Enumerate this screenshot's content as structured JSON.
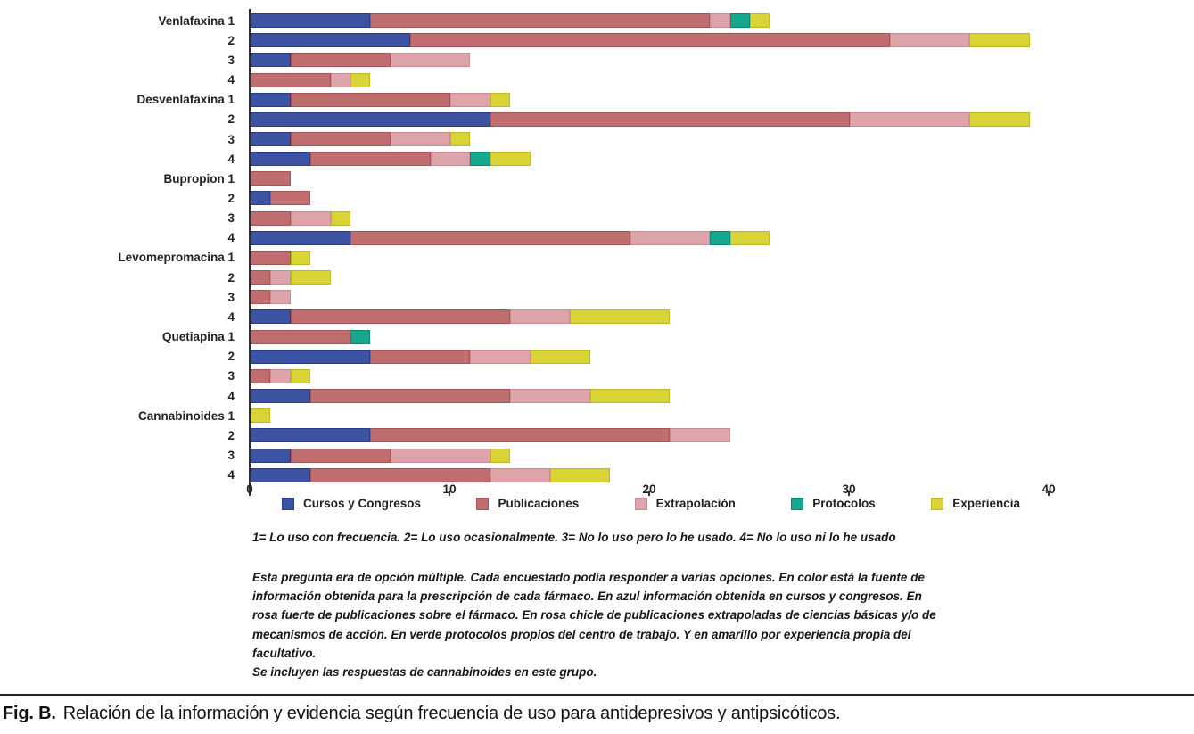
{
  "chart_data": {
    "type": "bar",
    "orientation": "horizontal",
    "stacked": true,
    "xlim": [
      0,
      40
    ],
    "x_ticks": [
      0,
      10,
      20,
      30,
      40
    ],
    "grid": false,
    "legend_position": "bottom",
    "series_names": [
      "Cursos y Congresos",
      "Publicaciones",
      "Extrapolación",
      "Protocolos",
      "Experiencia"
    ],
    "series_keys": [
      "cursos-y-congresos",
      "publicaciones",
      "extrapolacion",
      "protocolos",
      "experiencia"
    ],
    "series_colors": [
      "#3c53a4",
      "#c06d70",
      "#dda4aa",
      "#17a78d",
      "#d9d335"
    ],
    "series_border_colors": [
      "#293c85",
      "#a65459",
      "#c98d95",
      "#0e8a74",
      "#bdb827"
    ],
    "rows": [
      {
        "group": "Venlafaxina",
        "label": "Venlafaxina 1",
        "values": [
          6,
          17,
          1,
          1,
          1
        ]
      },
      {
        "group": "Venlafaxina",
        "label": "2",
        "values": [
          8,
          24,
          4,
          0,
          3
        ]
      },
      {
        "group": "Venlafaxina",
        "label": "3",
        "values": [
          2,
          5,
          4,
          0,
          0
        ]
      },
      {
        "group": "Venlafaxina",
        "label": "4",
        "values": [
          0,
          4,
          1,
          0,
          1
        ]
      },
      {
        "group": "Desvenlafaxina",
        "label": "Desvenlafaxina 1",
        "values": [
          2,
          8,
          2,
          0,
          1
        ]
      },
      {
        "group": "Desvenlafaxina",
        "label": "2",
        "values": [
          12,
          18,
          6,
          0,
          3
        ]
      },
      {
        "group": "Desvenlafaxina",
        "label": "3",
        "values": [
          2,
          5,
          3,
          0,
          1
        ]
      },
      {
        "group": "Desvenlafaxina",
        "label": "4",
        "values": [
          3,
          6,
          2,
          1,
          2
        ]
      },
      {
        "group": "Bupropion",
        "label": "Bupropion 1",
        "values": [
          0,
          2,
          0,
          0,
          0
        ]
      },
      {
        "group": "Bupropion",
        "label": "2",
        "values": [
          1,
          2,
          0,
          0,
          0
        ]
      },
      {
        "group": "Bupropion",
        "label": "3",
        "values": [
          0,
          2,
          2,
          0,
          1
        ]
      },
      {
        "group": "Bupropion",
        "label": "4",
        "values": [
          5,
          14,
          4,
          1,
          2
        ]
      },
      {
        "group": "Levomepromacina",
        "label": "Levomepromacina 1",
        "values": [
          0,
          2,
          0,
          0,
          1
        ]
      },
      {
        "group": "Levomepromacina",
        "label": "2",
        "values": [
          0,
          1,
          1,
          0,
          2
        ]
      },
      {
        "group": "Levomepromacina",
        "label": "3",
        "values": [
          0,
          1,
          1,
          0,
          0
        ]
      },
      {
        "group": "Levomepromacina",
        "label": "4",
        "values": [
          2,
          11,
          3,
          0,
          5
        ]
      },
      {
        "group": "Quetiapina",
        "label": "Quetiapina 1",
        "values": [
          0,
          5,
          0,
          1,
          0
        ]
      },
      {
        "group": "Quetiapina",
        "label": "2",
        "values": [
          6,
          5,
          3,
          0,
          3
        ]
      },
      {
        "group": "Quetiapina",
        "label": "3",
        "values": [
          0,
          1,
          1,
          0,
          1
        ]
      },
      {
        "group": "Quetiapina",
        "label": "4",
        "values": [
          3,
          10,
          4,
          0,
          4
        ]
      },
      {
        "group": "Cannabinoides",
        "label": "Cannabinoides 1",
        "values": [
          0,
          0,
          0,
          0,
          1
        ]
      },
      {
        "group": "Cannabinoides",
        "label": "2",
        "values": [
          6,
          15,
          3,
          0,
          0
        ]
      },
      {
        "group": "Cannabinoides",
        "label": "3",
        "values": [
          2,
          5,
          5,
          0,
          1
        ]
      },
      {
        "group": "Cannabinoides",
        "label": "4",
        "values": [
          3,
          9,
          3,
          0,
          3
        ]
      }
    ]
  },
  "footnotes": {
    "scale_note": "1= Lo uso con frecuencia. 2= Lo uso ocasionalmente. 3= No lo uso pero lo he usado. 4= No lo uso ni lo he usado",
    "description_lines": [
      "Esta pregunta era de opción múltiple. Cada encuestado podía responder a varias opciones. En color está la fuente de",
      "información obtenida para la prescripción de cada fármaco. En azul información obtenida en cursos y congresos. En",
      "rosa fuerte de publicaciones sobre el fármaco. En rosa chicle de publicaciones extrapoladas de ciencias básicas y/o de",
      "mecanismos de acción. En verde protocolos propios del centro de trabajo. Y en amarillo por experiencia propia del",
      "facultativo.",
      "Se incluyen las respuestas de cannabinoides en este grupo."
    ]
  },
  "caption": {
    "prefix": "Fig. B.",
    "text": "Relación de la información y evidencia según frecuencia de uso para antidepresivos y antipsicóticos."
  }
}
